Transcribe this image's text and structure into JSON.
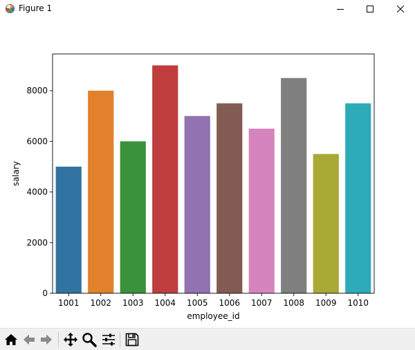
{
  "window": {
    "title": "Figure 1",
    "icons": {
      "app": "matplotlib-icon",
      "minimize": "minimize-icon",
      "maximize": "maximize-icon",
      "close": "close-icon"
    }
  },
  "toolbar": {
    "buttons": [
      {
        "name": "home-icon",
        "tooltip": "Home"
      },
      {
        "name": "back-arrow-icon",
        "tooltip": "Back"
      },
      {
        "name": "forward-arrow-icon",
        "tooltip": "Forward"
      },
      {
        "name": "pan-icon",
        "tooltip": "Pan"
      },
      {
        "name": "zoom-icon",
        "tooltip": "Zoom"
      },
      {
        "name": "configure-subplots-icon",
        "tooltip": "Subplots"
      },
      {
        "name": "save-icon",
        "tooltip": "Save"
      }
    ]
  },
  "chart_data": {
    "type": "bar",
    "categories": [
      "1001",
      "1002",
      "1003",
      "1004",
      "1005",
      "1006",
      "1007",
      "1008",
      "1009",
      "1010"
    ],
    "values": [
      5000,
      8000,
      6000,
      9000,
      7000,
      7500,
      6500,
      8500,
      5500,
      7500
    ],
    "colors": [
      "#3274a1",
      "#e1812c",
      "#3a923a",
      "#c03d3e",
      "#9372b2",
      "#845b53",
      "#d684bd",
      "#7f7f7f",
      "#a9aa35",
      "#2eabb8"
    ],
    "title": "",
    "xlabel": "employee_id",
    "ylabel": "salary",
    "ylim": [
      0,
      9450
    ],
    "yticks": [
      "0",
      "2000",
      "4000",
      "6000",
      "8000"
    ],
    "grid": false
  }
}
